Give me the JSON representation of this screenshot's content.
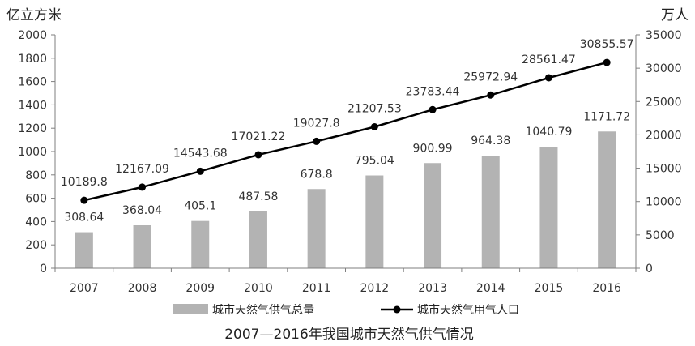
{
  "chart_data": {
    "type": "bar",
    "title": "2007—2016年我国城市天然气供气情况",
    "categories": [
      "2007",
      "2008",
      "2009",
      "2010",
      "2011",
      "2012",
      "2013",
      "2014",
      "2015",
      "2016"
    ],
    "y_left": {
      "unit": "亿立方米",
      "ylim": [
        0,
        2000
      ],
      "ticks": [
        0,
        200,
        400,
        600,
        800,
        1000,
        1200,
        1400,
        1600,
        1800,
        2000
      ]
    },
    "y_right": {
      "unit": "万人",
      "ylim": [
        0,
        35000
      ],
      "ticks": [
        0,
        5000,
        10000,
        15000,
        20000,
        25000,
        30000,
        35000
      ]
    },
    "series": [
      {
        "name": "城市天然气供气总量",
        "type": "bar",
        "axis": "left",
        "color": "#b3b3b3",
        "values": [
          308.64,
          368.04,
          405.1,
          487.58,
          678.8,
          795.04,
          900.99,
          964.38,
          1040.79,
          1171.72
        ],
        "labels": [
          "308.64",
          "368.04",
          "405.1",
          "487.58",
          "678.8",
          "795.04",
          "900.99",
          "964.38",
          "1040.79",
          "1171.72"
        ]
      },
      {
        "name": "城市天然气用气人口",
        "type": "line",
        "axis": "right",
        "color": "#000000",
        "values": [
          10189.8,
          12167.09,
          14543.68,
          17021.22,
          19027.8,
          21207.53,
          23783.44,
          25972.94,
          28561.47,
          30855.57
        ],
        "labels": [
          "10189.8",
          "12167.09",
          "14543.68",
          "17021.22",
          "19027.8",
          "21207.53",
          "23783.44",
          "25972.94",
          "28561.47",
          "30855.57"
        ]
      }
    ],
    "grid": false,
    "legend_position": "bottom"
  }
}
